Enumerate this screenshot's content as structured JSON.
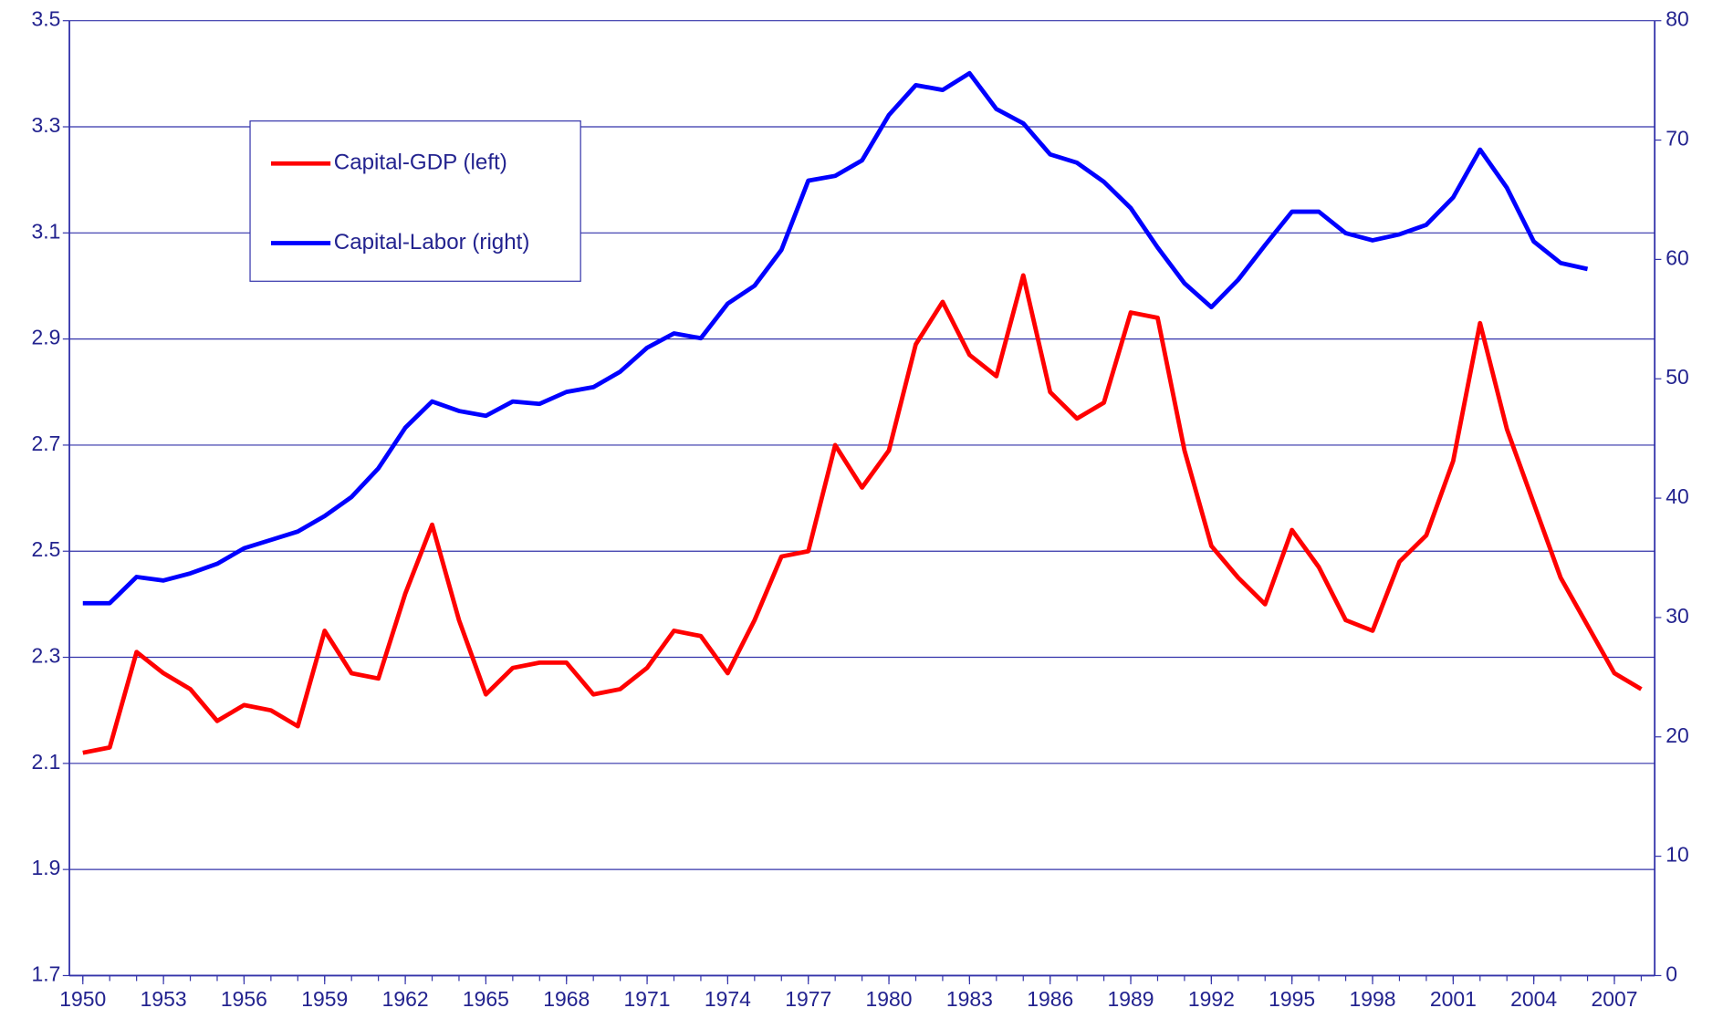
{
  "chart_data": {
    "type": "line",
    "x": [
      1950,
      1951,
      1952,
      1953,
      1954,
      1955,
      1956,
      1957,
      1958,
      1959,
      1960,
      1961,
      1962,
      1963,
      1964,
      1965,
      1966,
      1967,
      1968,
      1969,
      1970,
      1971,
      1972,
      1973,
      1974,
      1975,
      1976,
      1977,
      1978,
      1979,
      1980,
      1981,
      1982,
      1983,
      1984,
      1985,
      1986,
      1987,
      1988,
      1989,
      1990,
      1991,
      1992,
      1993,
      1994,
      1995,
      1996,
      1997,
      1998,
      1999,
      2000,
      2001,
      2002,
      2003,
      2004,
      2005,
      2006,
      2007,
      2008
    ],
    "series": [
      {
        "name": "Capital-GDP (left)",
        "color": "#ff0000",
        "values": [
          2.12,
          2.13,
          2.31,
          2.27,
          2.24,
          2.18,
          2.21,
          2.2,
          2.17,
          2.35,
          2.27,
          2.26,
          2.42,
          2.55,
          2.37,
          2.23,
          2.28,
          2.29,
          2.29,
          2.23,
          2.24,
          2.28,
          2.35,
          2.34,
          2.27,
          2.37,
          2.49,
          2.5,
          2.7,
          2.62,
          2.69,
          2.89,
          2.97,
          2.87,
          2.83,
          3.02,
          2.8,
          2.75,
          2.78,
          2.95,
          2.94,
          2.69,
          2.51,
          2.45,
          2.4,
          2.54,
          2.47,
          2.37,
          2.35,
          2.48,
          2.53,
          2.67,
          2.93,
          2.73,
          2.59,
          2.45,
          2.36,
          2.27,
          2.24
        ]
      },
      {
        "name": "Capital-Labor (right)",
        "color": "#0000ff",
        "axis": "y2",
        "values": [
          31.2,
          31.2,
          33.4,
          33.1,
          33.7,
          34.5,
          35.8,
          36.5,
          37.2,
          38.5,
          40.1,
          42.5,
          45.9,
          48.1,
          47.3,
          46.9,
          48.1,
          47.9,
          48.9,
          49.3,
          50.6,
          52.6,
          53.8,
          53.4,
          56.3,
          57.8,
          60.8,
          66.6,
          67.0,
          68.3,
          72.1,
          74.6,
          74.2,
          75.6,
          72.6,
          71.4,
          68.8,
          68.1,
          66.5,
          64.3,
          61.0,
          58.0,
          56.0,
          58.3,
          61.2,
          64.0,
          64.0,
          62.2,
          61.6,
          62.1,
          62.9,
          65.2,
          69.2,
          66.0,
          61.5,
          59.7,
          59.2,
          null,
          null
        ]
      }
    ],
    "xlim": [
      1949.5,
      2008.5
    ],
    "xticks": [
      1950,
      1953,
      1956,
      1959,
      1962,
      1965,
      1968,
      1971,
      1974,
      1977,
      1980,
      1983,
      1986,
      1989,
      1992,
      1995,
      1998,
      2001,
      2004,
      2007
    ],
    "x_minor_ticks": [
      1950,
      1951,
      1952,
      1953,
      1954,
      1955,
      1956,
      1957,
      1958,
      1959,
      1960,
      1961,
      1962,
      1963,
      1964,
      1965,
      1966,
      1967,
      1968,
      1969,
      1970,
      1971,
      1972,
      1973,
      1974,
      1975,
      1976,
      1977,
      1978,
      1979,
      1980,
      1981,
      1982,
      1983,
      1984,
      1985,
      1986,
      1987,
      1988,
      1989,
      1990,
      1991,
      1992,
      1993,
      1994,
      1995,
      1996,
      1997,
      1998,
      1999,
      2000,
      2001,
      2002,
      2003,
      2004,
      2005,
      2006,
      2007,
      2008
    ],
    "ylim": [
      1.7,
      3.5
    ],
    "yticks": [
      1.7,
      1.9,
      2.1,
      2.3,
      2.5,
      2.7,
      2.9,
      3.1,
      3.3,
      3.5
    ],
    "y2lim": [
      0,
      80
    ],
    "y2ticks": [
      0,
      10,
      20,
      30,
      40,
      50,
      60,
      70,
      80
    ],
    "grid": true,
    "legend": "upper left"
  }
}
